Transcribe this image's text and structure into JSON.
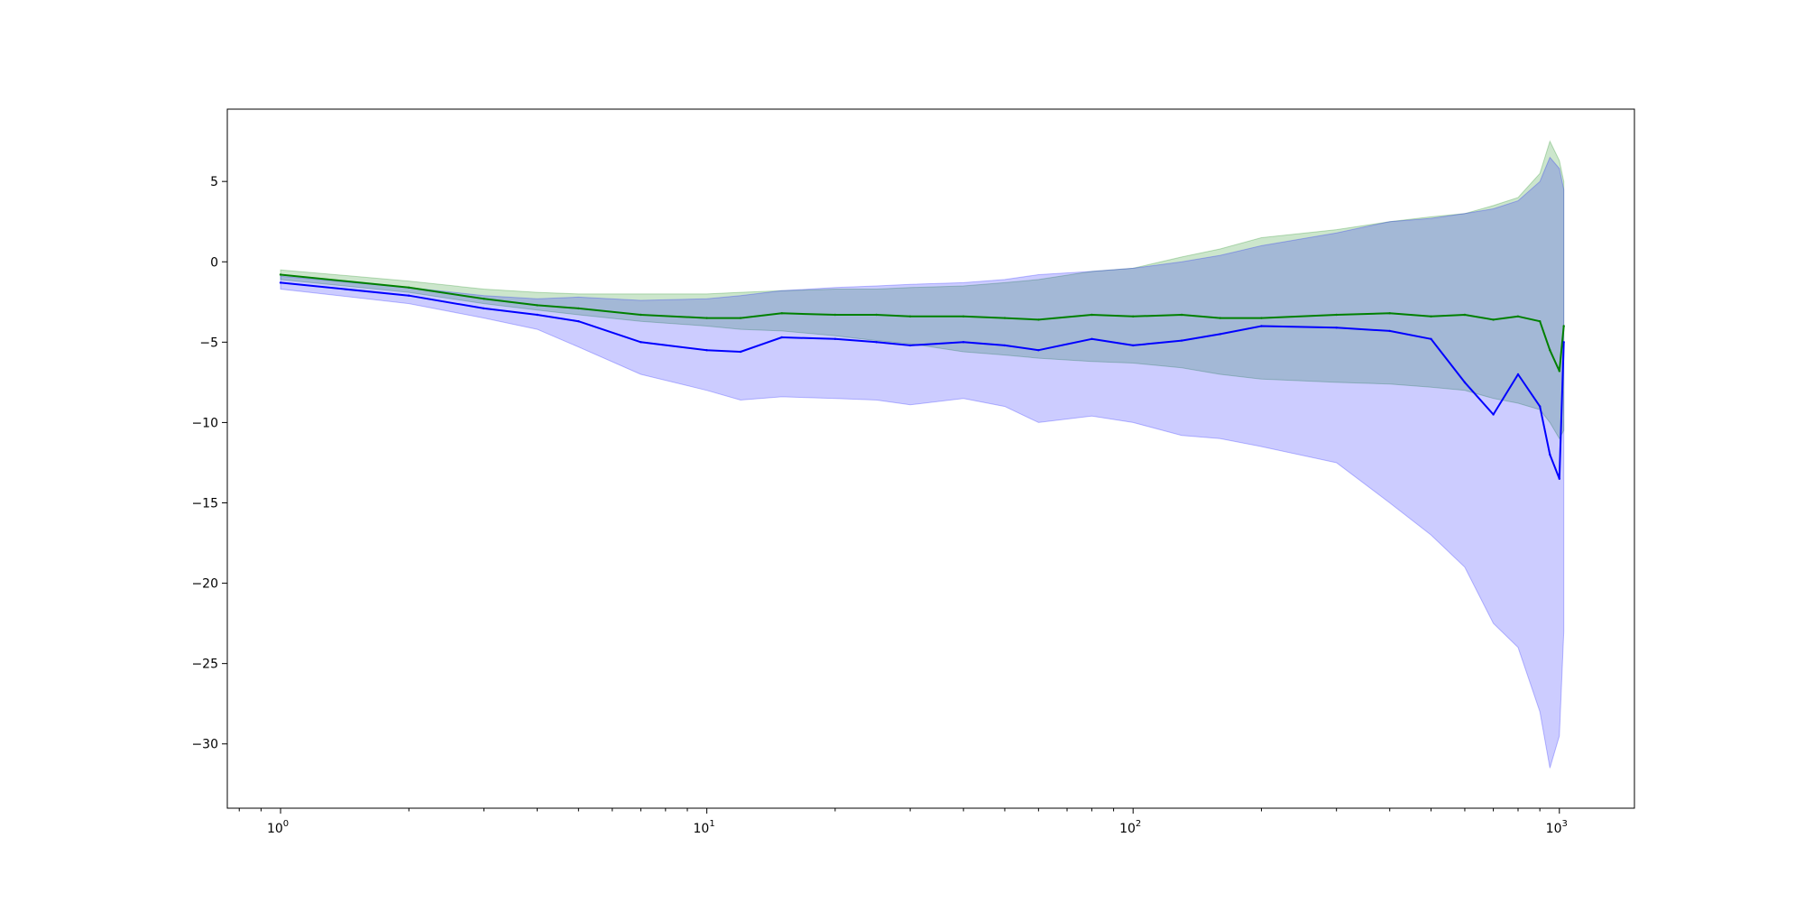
{
  "chart_data": {
    "type": "line",
    "title": "",
    "xlabel": "",
    "ylabel": "",
    "x_scale": "log",
    "xlim": [
      0.75,
      1500
    ],
    "ylim": [
      -34,
      9.5
    ],
    "grid": false,
    "legend": "none",
    "x_ticks": [
      {
        "value": 1,
        "base": "10",
        "exp": "0"
      },
      {
        "value": 10,
        "base": "10",
        "exp": "1"
      },
      {
        "value": 100,
        "base": "10",
        "exp": "2"
      },
      {
        "value": 1000,
        "base": "10",
        "exp": "3"
      }
    ],
    "y_ticks": [
      {
        "value": 5,
        "label": "5"
      },
      {
        "value": 0,
        "label": "0"
      },
      {
        "value": -5,
        "label": "−5"
      },
      {
        "value": -10,
        "label": "−10"
      },
      {
        "value": -15,
        "label": "−15"
      },
      {
        "value": -20,
        "label": "−20"
      },
      {
        "value": -25,
        "label": "−25"
      },
      {
        "value": -30,
        "label": "−30"
      }
    ],
    "series": [
      {
        "color": "#008000",
        "band_color": "#008000",
        "band_opacity": 0.2,
        "x": [
          1,
          2,
          3,
          4,
          5,
          7,
          10,
          12,
          15,
          20,
          25,
          30,
          40,
          50,
          60,
          80,
          100,
          130,
          160,
          200,
          300,
          400,
          500,
          600,
          700,
          800,
          900,
          950,
          1000,
          1024
        ],
        "y": [
          -0.8,
          -1.6,
          -2.3,
          -2.7,
          -2.9,
          -3.3,
          -3.5,
          -3.5,
          -3.2,
          -3.3,
          -3.3,
          -3.4,
          -3.4,
          -3.5,
          -3.6,
          -3.3,
          -3.4,
          -3.3,
          -3.5,
          -3.5,
          -3.3,
          -3.2,
          -3.4,
          -3.3,
          -3.6,
          -3.4,
          -3.7,
          -5.5,
          -6.8,
          -4.0
        ],
        "lower": [
          -1.1,
          -1.9,
          -2.6,
          -3.0,
          -3.3,
          -3.7,
          -4.0,
          -4.2,
          -4.3,
          -4.6,
          -4.9,
          -5.1,
          -5.6,
          -5.8,
          -6.0,
          -6.2,
          -6.3,
          -6.6,
          -7.0,
          -7.3,
          -7.5,
          -7.6,
          -7.8,
          -8.0,
          -8.5,
          -8.8,
          -9.2,
          -10.0,
          -11.0,
          -10.5
        ],
        "upper": [
          -0.5,
          -1.2,
          -1.7,
          -1.9,
          -2.0,
          -2.0,
          -2.0,
          -1.9,
          -1.8,
          -1.7,
          -1.7,
          -1.6,
          -1.5,
          -1.3,
          -1.1,
          -0.6,
          -0.4,
          0.3,
          0.8,
          1.5,
          2.0,
          2.5,
          2.8,
          3.0,
          3.5,
          4.0,
          5.5,
          7.5,
          6.3,
          5.0
        ]
      },
      {
        "color": "#0000ff",
        "band_color": "#0000ff",
        "band_opacity": 0.2,
        "x": [
          1,
          2,
          3,
          4,
          5,
          7,
          10,
          12,
          15,
          20,
          25,
          30,
          40,
          50,
          60,
          80,
          100,
          130,
          160,
          200,
          300,
          400,
          500,
          600,
          700,
          800,
          900,
          950,
          1000,
          1024
        ],
        "y": [
          -1.3,
          -2.1,
          -2.9,
          -3.3,
          -3.7,
          -5.0,
          -5.5,
          -5.6,
          -4.7,
          -4.8,
          -5.0,
          -5.2,
          -5.0,
          -5.2,
          -5.5,
          -4.8,
          -5.2,
          -4.9,
          -4.5,
          -4.0,
          -4.1,
          -4.3,
          -4.8,
          -7.5,
          -9.5,
          -7.0,
          -9.0,
          -12.0,
          -13.5,
          -5.0
        ],
        "lower": [
          -1.7,
          -2.6,
          -3.5,
          -4.2,
          -5.3,
          -7.0,
          -8.0,
          -8.6,
          -8.4,
          -8.5,
          -8.6,
          -8.9,
          -8.5,
          -9.0,
          -10.0,
          -9.6,
          -10.0,
          -10.8,
          -11.0,
          -11.5,
          -12.5,
          -15.0,
          -17.0,
          -19.0,
          -22.5,
          -24.0,
          -28.0,
          -31.5,
          -29.5,
          -23.0
        ],
        "upper": [
          -0.9,
          -1.6,
          -2.1,
          -2.3,
          -2.2,
          -2.4,
          -2.3,
          -2.1,
          -1.8,
          -1.6,
          -1.5,
          -1.4,
          -1.3,
          -1.1,
          -0.8,
          -0.6,
          -0.4,
          0.0,
          0.4,
          1.0,
          1.8,
          2.5,
          2.7,
          3.0,
          3.3,
          3.8,
          5.0,
          6.5,
          5.8,
          4.5
        ]
      }
    ]
  }
}
